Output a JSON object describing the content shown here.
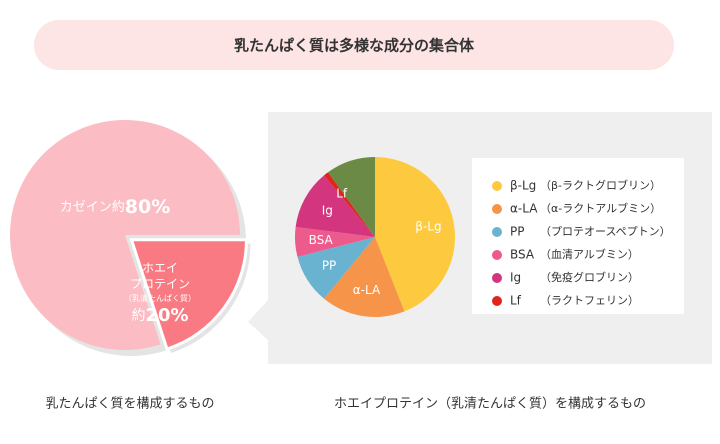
{
  "banner_title": "乳たんぱく質は多様な成分の集合体",
  "chart_data": [
    {
      "type": "pie",
      "caption": "乳たんぱく質を構成するもの",
      "label_lines": [
        [
          "カゼイン約"
        ],
        [
          "ホエイ",
          "プロテイン",
          "（乳清たんぱく質）",
          "約"
        ]
      ],
      "values": [
        80,
        20
      ],
      "value_labels": [
        "80%",
        "20%"
      ],
      "colors": [
        "#fcbcc3",
        "#f97a82"
      ]
    },
    {
      "type": "pie",
      "caption": "ホエイプロテイン（乳清たんぱく質）を構成するもの",
      "categories": [
        "β-Lg",
        "α-LA",
        "PP",
        "BSA",
        "Ig",
        "Lf",
        null
      ],
      "descriptions": [
        "（β-ラクトグロブリン）",
        "（α-ラクトアルブミン）",
        "（プロテオースペプトン）",
        "（血清アルブミン）",
        "（免疫グロブリン）",
        "（ラクトフェリン）",
        null
      ],
      "values": [
        44,
        17,
        10,
        6,
        12,
        1,
        10
      ],
      "colors": [
        "#fdc93f",
        "#f6944a",
        "#6ab3d0",
        "#ec5b8b",
        "#d3357e",
        "#e0261c",
        "#6a8a45"
      ]
    }
  ]
}
